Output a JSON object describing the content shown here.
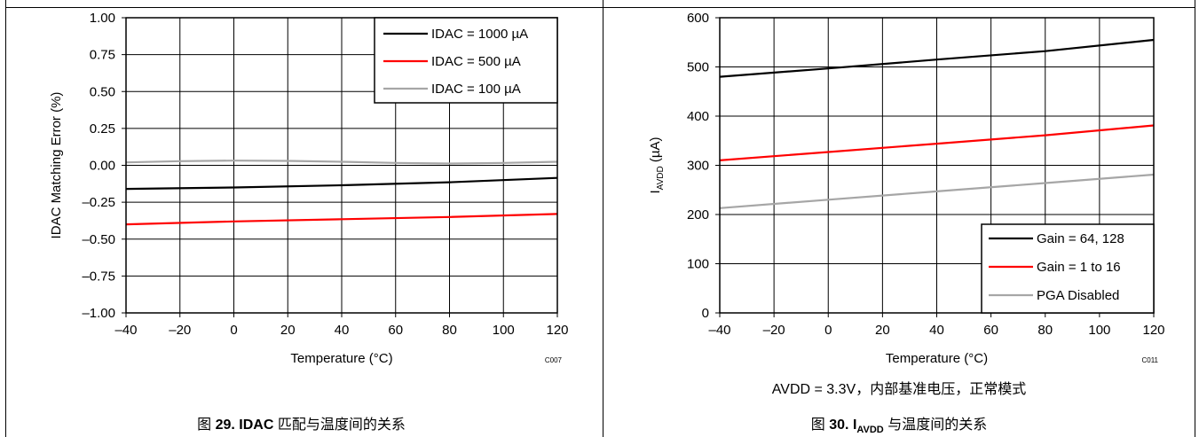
{
  "chart_data": [
    {
      "type": "line",
      "xlabel": "Temperature (°C)",
      "ylabel": "IDAC Matching Error (%)",
      "code": "C007",
      "xlim": [
        -40,
        120
      ],
      "ylim": [
        -1.0,
        1.0
      ],
      "xticks": [
        "–40",
        "–20",
        "0",
        "20",
        "40",
        "60",
        "80",
        "100",
        "120"
      ],
      "yticks": [
        "1.00",
        "0.75",
        "0.50",
        "0.25",
        "0.00",
        "–0.25",
        "–0.50",
        "–0.75",
        "–1.00"
      ],
      "grid": true,
      "legend_position": "top-right",
      "series": [
        {
          "name": "IDAC = 1000 µA",
          "color": "#000000",
          "x": [
            -40,
            0,
            40,
            80,
            120
          ],
          "y": [
            -0.16,
            -0.15,
            -0.135,
            -0.115,
            -0.085
          ]
        },
        {
          "name": "IDAC = 500 µA",
          "color": "#ff0000",
          "x": [
            -40,
            0,
            40,
            80,
            120
          ],
          "y": [
            -0.4,
            -0.38,
            -0.365,
            -0.35,
            -0.33
          ]
        },
        {
          "name": "IDAC = 100 µA",
          "color": "#a6a6a6",
          "x": [
            -40,
            -20,
            0,
            20,
            40,
            60,
            80,
            100,
            120
          ],
          "y": [
            0.02,
            0.028,
            0.032,
            0.03,
            0.024,
            0.016,
            0.012,
            0.016,
            0.024
          ]
        }
      ]
    },
    {
      "type": "line",
      "xlabel": "Temperature (°C)",
      "ylabel_main": "I",
      "ylabel_sub": "AVDD",
      "ylabel_unit": " (µA)",
      "code": "C011",
      "xlim": [
        -40,
        120
      ],
      "ylim": [
        0,
        600
      ],
      "xticks": [
        "–40",
        "–20",
        "0",
        "20",
        "40",
        "60",
        "80",
        "100",
        "120"
      ],
      "yticks": [
        "600",
        "500",
        "400",
        "300",
        "200",
        "100",
        "0"
      ],
      "grid": true,
      "legend_position": "bottom-right",
      "series": [
        {
          "name": "Gain = 64, 128",
          "color": "#000000",
          "x": [
            -40,
            0,
            40,
            80,
            120
          ],
          "y": [
            480,
            497,
            515,
            532,
            555
          ]
        },
        {
          "name": "Gain = 1 to 16",
          "color": "#ff0000",
          "x": [
            -40,
            0,
            40,
            80,
            120
          ],
          "y": [
            310,
            327,
            344,
            361,
            381
          ]
        },
        {
          "name": "PGA Disabled",
          "color": "#a6a6a6",
          "x": [
            -40,
            0,
            40,
            80,
            120
          ],
          "y": [
            213,
            230,
            247,
            264,
            281
          ]
        }
      ]
    }
  ],
  "note2": "AVDD = 3.3V，内部基准电压，正常模式",
  "caption1": {
    "prefix": "图 ",
    "bold": "29. IDAC",
    "suffix": " 匹配与温度间的关系"
  },
  "caption2": {
    "prefix": "图 ",
    "bold_main": "30. I",
    "bold_sub": "AVDD",
    "suffix": " 与温度间的关系"
  }
}
